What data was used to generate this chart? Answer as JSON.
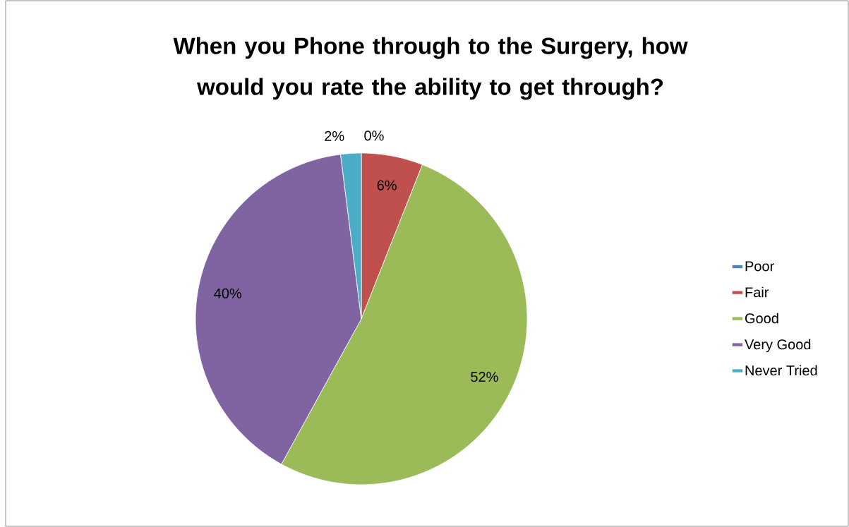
{
  "chart_data": {
    "type": "pie",
    "title": "When you Phone through to the Surgery, how would you rate the ability to get through?",
    "categories": [
      "Poor",
      "Fair",
      "Good",
      "Very Good",
      "Never Tried"
    ],
    "values": [
      0,
      6,
      52,
      40,
      2
    ],
    "colors": [
      "#4f81bd",
      "#c0504d",
      "#9bbb59",
      "#8064a2",
      "#4bacc6"
    ],
    "value_labels": [
      "0%",
      "6%",
      "52%",
      "40%",
      "2%"
    ],
    "legend": "right"
  }
}
